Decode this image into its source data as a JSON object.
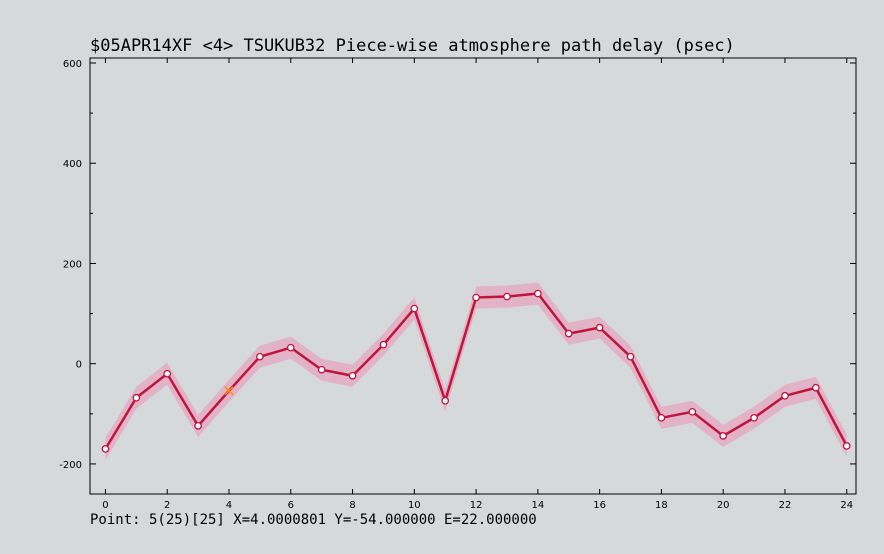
{
  "chart_data": {
    "type": "line",
    "title": "$05APR14XF <4>  TSUKUB32  Piece-wise atmosphere path delay (psec)",
    "xlabel": "",
    "ylabel": "",
    "xlim": [
      -0.5,
      24.3
    ],
    "ylim": [
      -260,
      610
    ],
    "x_ticks": [
      0,
      2,
      4,
      6,
      8,
      10,
      12,
      14,
      16,
      18,
      20,
      22,
      24
    ],
    "y_ticks": [
      -200,
      0,
      200,
      400,
      600
    ],
    "grid": false,
    "series": [
      {
        "x": [
          0,
          1,
          2,
          3,
          4,
          5,
          6,
          7,
          8,
          9,
          10,
          11,
          12,
          13,
          14,
          15,
          16,
          17,
          18,
          19,
          20,
          21,
          22,
          23,
          24
        ],
        "y": [
          -170,
          -68,
          -20,
          -124,
          -54,
          14,
          32,
          -12,
          -24,
          38,
          110,
          -74,
          132,
          134,
          140,
          60,
          72,
          14,
          -108,
          -96,
          -144,
          -108,
          -64,
          -48,
          -164
        ],
        "error": [
          22,
          22,
          22,
          22,
          22,
          22,
          22,
          22,
          22,
          22,
          22,
          22,
          22,
          22,
          22,
          22,
          22,
          22,
          22,
          22,
          22,
          22,
          22,
          22,
          22
        ],
        "color": "#c0143c",
        "band_color": "#e6a6bf",
        "selected_index": 4,
        "selected_color": "#ff8c00"
      }
    ]
  },
  "status_line": "Point: 5(25)[25] X=4.0000801 Y=-54.000000 E=22.000000"
}
